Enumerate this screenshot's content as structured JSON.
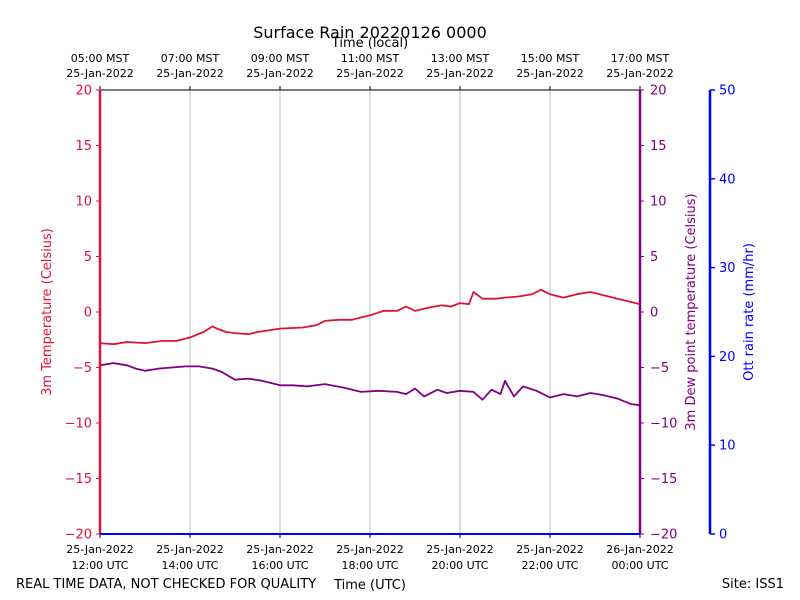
{
  "chart_data": {
    "type": "line",
    "title": "Surface Rain 20220126 0000",
    "top_axis_label": "Time (local)",
    "bottom_axis_label": "Time (UTC)",
    "top_ticks": [
      {
        "line1": "05:00 MST",
        "line2": "25-Jan-2022"
      },
      {
        "line1": "07:00 MST",
        "line2": "25-Jan-2022"
      },
      {
        "line1": "09:00 MST",
        "line2": "25-Jan-2022"
      },
      {
        "line1": "11:00 MST",
        "line2": "25-Jan-2022"
      },
      {
        "line1": "13:00 MST",
        "line2": "25-Jan-2022"
      },
      {
        "line1": "15:00 MST",
        "line2": "25-Jan-2022"
      },
      {
        "line1": "17:00 MST",
        "line2": "25-Jan-2022"
      }
    ],
    "bottom_ticks": [
      {
        "line1": "25-Jan-2022",
        "line2": "12:00 UTC"
      },
      {
        "line1": "25-Jan-2022",
        "line2": "14:00 UTC"
      },
      {
        "line1": "25-Jan-2022",
        "line2": "16:00 UTC"
      },
      {
        "line1": "25-Jan-2022",
        "line2": "18:00 UTC"
      },
      {
        "line1": "25-Jan-2022",
        "line2": "20:00 UTC"
      },
      {
        "line1": "25-Jan-2022",
        "line2": "22:00 UTC"
      },
      {
        "line1": "26-Jan-2022",
        "line2": "00:00 UTC"
      }
    ],
    "x_range_hours_utc": [
      12,
      24
    ],
    "left_axis": {
      "label": "3m Temperature (Celsius)",
      "ylim": [
        -20,
        20
      ],
      "ticks": [
        -20,
        -15,
        -10,
        -5,
        0,
        5,
        10,
        15,
        20
      ],
      "color": "#dc143c"
    },
    "right_axis": {
      "label": "3m Dew point temperature (Celsius)",
      "ylim": [
        -20,
        20
      ],
      "ticks": [
        -20,
        -15,
        -10,
        -5,
        0,
        5,
        10,
        15,
        20
      ],
      "color": "#800080"
    },
    "far_right_axis": {
      "label": "Ott rain rate (mm/hr)",
      "ylim": [
        0,
        50
      ],
      "ticks": [
        0,
        10,
        20,
        30,
        40,
        50
      ],
      "color": "#0000ff"
    },
    "grid": "vertical",
    "series": [
      {
        "axis": "left",
        "color": "#dc143c",
        "x": [
          12.0,
          12.3,
          12.6,
          13.0,
          13.4,
          13.7,
          14.0,
          14.3,
          14.5,
          14.6,
          14.8,
          15.0,
          15.3,
          15.5,
          16.0,
          16.5,
          16.8,
          17.0,
          17.3,
          17.6,
          18.0,
          18.3,
          18.6,
          18.8,
          19.0,
          19.3,
          19.6,
          19.8,
          20.0,
          20.2,
          20.3,
          20.5,
          20.8,
          21.0,
          21.3,
          21.6,
          21.8,
          22.0,
          22.3,
          22.6,
          22.9,
          23.2,
          23.5,
          23.8,
          24.0
        ],
        "values": [
          -2.8,
          -2.9,
          -2.7,
          -2.8,
          -2.6,
          -2.6,
          -2.3,
          -1.8,
          -1.3,
          -1.5,
          -1.8,
          -1.9,
          -2.0,
          -1.8,
          -1.5,
          -1.4,
          -1.2,
          -0.8,
          -0.7,
          -0.7,
          -0.3,
          0.1,
          0.1,
          0.5,
          0.1,
          0.4,
          0.6,
          0.5,
          0.8,
          0.7,
          1.8,
          1.2,
          1.2,
          1.3,
          1.4,
          1.6,
          2.0,
          1.6,
          1.3,
          1.6,
          1.8,
          1.5,
          1.2,
          0.9,
          0.7
        ]
      },
      {
        "axis": "right",
        "color": "#800080",
        "x": [
          12.0,
          12.3,
          12.6,
          12.8,
          13.0,
          13.3,
          13.6,
          13.9,
          14.2,
          14.5,
          14.7,
          15.0,
          15.3,
          15.6,
          16.0,
          16.3,
          16.6,
          17.0,
          17.4,
          17.8,
          18.2,
          18.6,
          18.8,
          19.0,
          19.2,
          19.5,
          19.7,
          20.0,
          20.3,
          20.5,
          20.7,
          20.9,
          21.0,
          21.2,
          21.4,
          21.7,
          22.0,
          22.3,
          22.6,
          22.9,
          23.2,
          23.5,
          23.8,
          24.0
        ],
        "values": [
          -4.8,
          -4.6,
          -4.8,
          -5.1,
          -5.3,
          -5.1,
          -5.0,
          -4.9,
          -4.9,
          -5.1,
          -5.4,
          -6.1,
          -6.0,
          -6.2,
          -6.6,
          -6.6,
          -6.7,
          -6.5,
          -6.8,
          -7.2,
          -7.1,
          -7.2,
          -7.4,
          -6.9,
          -7.6,
          -7.0,
          -7.3,
          -7.1,
          -7.2,
          -7.9,
          -7.0,
          -7.4,
          -6.2,
          -7.6,
          -6.7,
          -7.1,
          -7.7,
          -7.4,
          -7.6,
          -7.3,
          -7.5,
          -7.8,
          -8.3,
          -8.4
        ]
      }
    ]
  },
  "footer": {
    "left_note": "REAL TIME DATA, NOT CHECKED FOR QUALITY",
    "site": "Site: ISS1"
  }
}
